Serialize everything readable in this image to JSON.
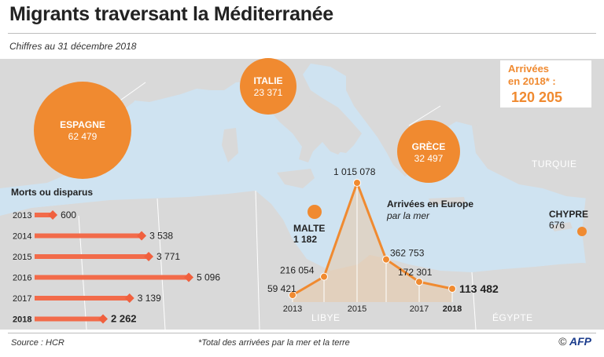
{
  "title": "Migrants traversant la Méditerranée",
  "subtitle": "Chiffres au 31 décembre 2018",
  "arrivals_total": {
    "label_line1": "Arrivées",
    "label_line2": "en 2018* :",
    "value": "120 205"
  },
  "countries": {
    "espagne": {
      "name": "ESPAGNE",
      "value": "62 479"
    },
    "italie": {
      "name": "ITALIE",
      "value": "23 371"
    },
    "grece": {
      "name": "GRÈCE",
      "value": "32 497"
    },
    "malte": {
      "name": "MALTE",
      "value": "1 182"
    },
    "chypre": {
      "name": "CHYPRE",
      "value": "676"
    }
  },
  "map_labels": {
    "turquie": "TURQUIE",
    "libye": "LIBYE",
    "egypte": "ÉGYPTE"
  },
  "deaths": {
    "title": "Morts ou disparus",
    "rows": [
      {
        "year": "2013",
        "value": "600",
        "n": 600
      },
      {
        "year": "2014",
        "value": "3 538",
        "n": 3538
      },
      {
        "year": "2015",
        "value": "3 771",
        "n": 3771
      },
      {
        "year": "2016",
        "value": "5 096",
        "n": 5096
      },
      {
        "year": "2017",
        "value": "3 139",
        "n": 3139
      },
      {
        "year": "2018",
        "value": "2 262",
        "n": 2262,
        "highlight": true
      }
    ]
  },
  "chart_data": {
    "type": "line",
    "title": "Arrivées en Europe",
    "subtitle": "par la mer",
    "x": [
      "2013",
      "2014",
      "2015",
      "2016",
      "2017",
      "2018"
    ],
    "x_tick_labels": [
      "2013",
      "2015",
      "2017",
      "2018"
    ],
    "values": [
      59421,
      216054,
      1015078,
      362753,
      172301,
      113482
    ],
    "value_labels": [
      "59 421",
      "216 054",
      "1 015 078",
      "362 753",
      "172 301",
      "113 482"
    ]
  },
  "footer": {
    "source": "Source : HCR",
    "note": "*Total des arrivées par la mer et la terre",
    "credit": "AFP",
    "copyright": "©"
  },
  "colors": {
    "accent": "#f08a30",
    "bar": "#f26b4a",
    "diamond": "#f0603e",
    "sea": "#cfe3f1",
    "land": "#d8d8d8"
  }
}
